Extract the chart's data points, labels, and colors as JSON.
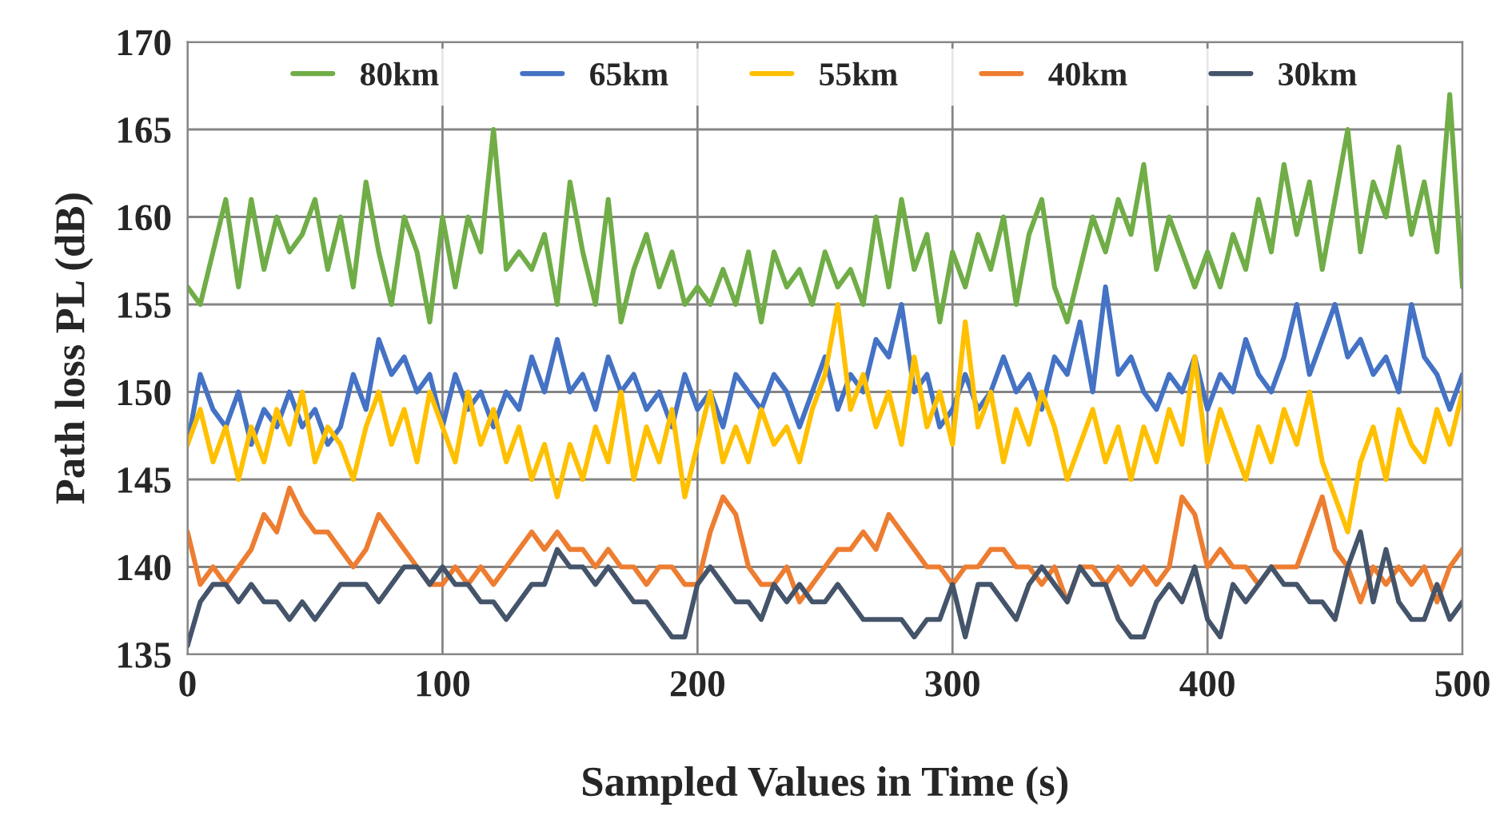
{
  "chart_data": {
    "type": "line",
    "xlabel": "Sampled Values in Time (s)",
    "ylabel": "Path loss PL (dB)",
    "x": [
      0,
      5,
      10,
      15,
      20,
      25,
      30,
      35,
      40,
      45,
      50,
      55,
      60,
      65,
      70,
      75,
      80,
      85,
      90,
      95,
      100,
      105,
      110,
      115,
      120,
      125,
      130,
      135,
      140,
      145,
      150,
      155,
      160,
      165,
      170,
      175,
      180,
      185,
      190,
      195,
      200,
      205,
      210,
      215,
      220,
      225,
      230,
      235,
      240,
      245,
      250,
      255,
      260,
      265,
      270,
      275,
      280,
      285,
      290,
      295,
      300,
      305,
      310,
      315,
      320,
      325,
      330,
      335,
      340,
      345,
      350,
      355,
      360,
      365,
      370,
      375,
      380,
      385,
      390,
      395,
      400,
      405,
      410,
      415,
      420,
      425,
      430,
      435,
      440,
      445,
      450,
      455,
      460,
      465,
      470,
      475,
      480,
      485,
      490,
      495,
      500
    ],
    "series": [
      {
        "name": "80km",
        "color": "#70ad47",
        "values": [
          156,
          155,
          158,
          161,
          156,
          161,
          157,
          160,
          158,
          159,
          161,
          157,
          160,
          156,
          162,
          158,
          155,
          160,
          158,
          154,
          160,
          156,
          160,
          158,
          165,
          157,
          158,
          157,
          159,
          155,
          162,
          158,
          155,
          161,
          154,
          157,
          159,
          156,
          158,
          155,
          156,
          155,
          157,
          155,
          158,
          154,
          158,
          156,
          157,
          155,
          158,
          156,
          157,
          155,
          160,
          156,
          161,
          157,
          159,
          154,
          158,
          156,
          159,
          157,
          160,
          155,
          159,
          161,
          156,
          154,
          157,
          160,
          158,
          161,
          159,
          163,
          157,
          160,
          158,
          156,
          158,
          156,
          159,
          157,
          161,
          158,
          163,
          159,
          162,
          157,
          161,
          165,
          158,
          162,
          160,
          164,
          159,
          162,
          158,
          167,
          156
        ]
      },
      {
        "name": "65km",
        "color": "#4472c4",
        "values": [
          147,
          151,
          149,
          148,
          150,
          147,
          149,
          148,
          150,
          148,
          149,
          147,
          148,
          151,
          149,
          153,
          151,
          152,
          150,
          151,
          148,
          151,
          149,
          150,
          148,
          150,
          149,
          152,
          150,
          153,
          150,
          151,
          149,
          152,
          150,
          151,
          149,
          150,
          148,
          151,
          149,
          150,
          148,
          151,
          150,
          149,
          151,
          150,
          148,
          150,
          152,
          149,
          151,
          150,
          153,
          152,
          155,
          150,
          151,
          148,
          149,
          151,
          149,
          150,
          152,
          150,
          151,
          149,
          152,
          151,
          154,
          150,
          156,
          151,
          152,
          150,
          149,
          151,
          150,
          152,
          149,
          151,
          150,
          153,
          151,
          150,
          152,
          155,
          151,
          153,
          155,
          152,
          153,
          151,
          152,
          150,
          155,
          152,
          151,
          149,
          151
        ]
      },
      {
        "name": "55km",
        "color": "#ffc000",
        "values": [
          147,
          149,
          146,
          148,
          145,
          148,
          146,
          149,
          147,
          150,
          146,
          148,
          147,
          145,
          148,
          150,
          147,
          149,
          146,
          150,
          148,
          146,
          150,
          147,
          149,
          146,
          148,
          145,
          147,
          144,
          147,
          145,
          148,
          146,
          150,
          145,
          148,
          146,
          149,
          144,
          147,
          150,
          146,
          148,
          146,
          149,
          147,
          148,
          146,
          149,
          151,
          155,
          149,
          151,
          148,
          150,
          147,
          152,
          148,
          150,
          147,
          154,
          148,
          150,
          146,
          149,
          147,
          150,
          148,
          145,
          147,
          149,
          146,
          148,
          145,
          148,
          146,
          149,
          147,
          152,
          146,
          149,
          147,
          145,
          148,
          146,
          149,
          147,
          150,
          146,
          144,
          142,
          146,
          148,
          145,
          149,
          147,
          146,
          149,
          147,
          150
        ]
      },
      {
        "name": "40km",
        "color": "#ed7d31",
        "values": [
          142,
          139,
          140,
          139,
          140,
          141,
          143,
          142,
          144.5,
          143,
          142,
          142,
          141,
          140,
          141,
          143,
          142,
          141,
          140,
          139,
          139,
          140,
          139,
          140,
          139,
          140,
          141,
          142,
          141,
          142,
          141,
          141,
          140,
          141,
          140,
          140,
          139,
          140,
          140,
          139,
          139,
          142,
          144,
          143,
          140,
          139,
          139,
          140,
          138,
          139,
          140,
          141,
          141,
          142,
          141,
          143,
          142,
          141,
          140,
          140,
          139,
          140,
          140,
          141,
          141,
          140,
          140,
          139,
          140,
          138,
          140,
          140,
          139,
          140,
          139,
          140,
          139,
          140,
          144,
          143,
          140,
          141,
          140,
          140,
          139,
          140,
          140,
          140,
          142,
          144,
          141,
          140,
          138,
          140,
          139,
          140,
          139,
          140,
          138,
          140,
          141
        ]
      },
      {
        "name": "30km",
        "color": "#44546a",
        "values": [
          135.5,
          138,
          139,
          139,
          138,
          139,
          138,
          138,
          137,
          138,
          137,
          138,
          139,
          139,
          139,
          138,
          139,
          140,
          140,
          139,
          140,
          139,
          139,
          138,
          138,
          137,
          138,
          139,
          139,
          141,
          140,
          140,
          139,
          140,
          139,
          138,
          138,
          137,
          136,
          136,
          139,
          140,
          139,
          138,
          138,
          137,
          139,
          138,
          139,
          138,
          138,
          139,
          138,
          137,
          137,
          137,
          137,
          136,
          137,
          137,
          139,
          136,
          139,
          139,
          138,
          137,
          139,
          140,
          139,
          138,
          140,
          139,
          139,
          137,
          136,
          136,
          138,
          139,
          138,
          140,
          137,
          136,
          139,
          138,
          139,
          140,
          139,
          139,
          138,
          138,
          137,
          140,
          142,
          138,
          141,
          138,
          137,
          137,
          139,
          137,
          138
        ]
      }
    ],
    "xlim": [
      0,
      500
    ],
    "xticks": [
      0,
      100,
      200,
      300,
      400,
      500
    ],
    "ylim": [
      135,
      170
    ],
    "yticks": [
      135,
      140,
      145,
      150,
      155,
      160,
      165,
      170
    ],
    "grid": true,
    "legend": "top",
    "marker": "none",
    "line_style": "solid"
  }
}
